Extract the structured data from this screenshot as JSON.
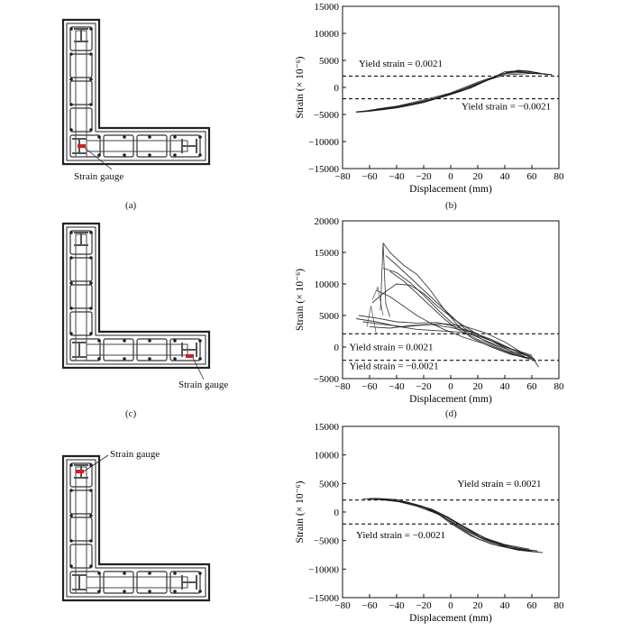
{
  "panels": [
    {
      "section_caption": "(a)",
      "gauge_label": "Strain gauge",
      "gauge_at": "corner",
      "chart_caption": "(b)"
    },
    {
      "section_caption": "(c)",
      "gauge_label": "Strain gauge",
      "gauge_at": "flange-end",
      "chart_caption": "(d)"
    },
    {
      "section_caption": "",
      "gauge_label": "Strain gauge",
      "gauge_at": "web-top",
      "chart_caption": ""
    }
  ],
  "chart_data": [
    {
      "type": "line",
      "xlabel": "Displacement (mm)",
      "ylabel": "Strain (× 10⁻⁶)",
      "xlim": [
        -80,
        80
      ],
      "ylim": [
        -15000,
        15000
      ],
      "xticks": [
        -80,
        -60,
        -40,
        -20,
        0,
        20,
        40,
        60,
        80
      ],
      "yticks": [
        -15000,
        -10000,
        -5000,
        0,
        5000,
        10000,
        15000
      ],
      "ytick_labels": [
        "−15000",
        "−10000",
        "−5000",
        "0",
        "5000",
        "10000",
        "15000"
      ],
      "xtick_labels": [
        "−80",
        "−60",
        "−40",
        "−20",
        "0",
        "20",
        "40",
        "60",
        "80"
      ],
      "reference_lines": [
        {
          "y": 2100,
          "label": "Yield strain = 0.0021",
          "label_x": -68,
          "label_y": 3800
        },
        {
          "y": -2100,
          "label": "Yield strain = −0.0021",
          "label_x": 8,
          "label_y": -4100
        }
      ],
      "series": [
        {
          "x": [
            -70,
            -60,
            -40,
            -20,
            0,
            20,
            40,
            60,
            75
          ],
          "y": [
            -4600,
            -4400,
            -3800,
            -2800,
            -1200,
            800,
            2300,
            2600,
            2400
          ]
        },
        {
          "x": [
            -70,
            -60,
            -40,
            -20,
            0,
            20,
            40,
            60,
            75
          ],
          "y": [
            -4500,
            -4300,
            -3500,
            -2300,
            -1000,
            1000,
            2600,
            2800,
            2300
          ]
        },
        {
          "x": [
            -65,
            -50,
            -30,
            -10,
            0,
            15,
            30,
            45,
            60,
            70
          ],
          "y": [
            -4400,
            -4100,
            -3300,
            -2000,
            -1200,
            200,
            1800,
            3000,
            2600,
            2500
          ]
        },
        {
          "x": [
            -60,
            -40,
            -20,
            0,
            20,
            35,
            50,
            65
          ],
          "y": [
            -4200,
            -3600,
            -2600,
            -1100,
            600,
            2200,
            3200,
            2700
          ]
        },
        {
          "x": [
            -55,
            -35,
            -15,
            0,
            15,
            30,
            40,
            55,
            70
          ],
          "y": [
            -4000,
            -3300,
            -2400,
            -1300,
            -100,
            1700,
            2900,
            3100,
            2400
          ]
        },
        {
          "x": [
            -68,
            -50,
            -30,
            -10,
            5,
            25,
            42,
            58,
            72
          ],
          "y": [
            -4500,
            -4000,
            -3100,
            -1900,
            -800,
            1200,
            2800,
            3000,
            2300
          ]
        },
        {
          "x": [
            -62,
            -45,
            -25,
            -5,
            10,
            28,
            38,
            52,
            67
          ],
          "y": [
            -4300,
            -3800,
            -2900,
            -1700,
            -500,
            1400,
            2500,
            3100,
            2600
          ]
        }
      ]
    },
    {
      "type": "line",
      "xlabel": "Displacement (mm)",
      "ylabel": "Strain (× 10⁻⁶)",
      "xlim": [
        -80,
        80
      ],
      "ylim": [
        -5000,
        20000
      ],
      "xticks": [
        -80,
        -60,
        -40,
        -20,
        0,
        20,
        40,
        60,
        80
      ],
      "yticks": [
        -5000,
        0,
        5000,
        10000,
        15000,
        20000
      ],
      "ytick_labels": [
        "−5000",
        "0",
        "5000",
        "10000",
        "15000",
        "20000"
      ],
      "xtick_labels": [
        "−80",
        "−60",
        "−40",
        "−20",
        "0",
        "20",
        "40",
        "60",
        "80"
      ],
      "reference_lines": [
        {
          "y": 2100,
          "label": "Yield strain = 0.0021",
          "label_x": -75,
          "label_y": -500
        },
        {
          "y": -2100,
          "label": "Yield strain = −0.0021",
          "label_x": -75,
          "label_y": -3500
        }
      ],
      "series": [
        {
          "x": [
            -50,
            -45,
            -35,
            -25,
            -15,
            -5,
            5,
            15,
            30,
            45,
            60
          ],
          "y": [
            16500,
            15000,
            13000,
            11500,
            9000,
            6000,
            3500,
            1500,
            0,
            -1200,
            -1800
          ]
        },
        {
          "x": [
            -48,
            -40,
            -30,
            -20,
            -10,
            0,
            10,
            25,
            40,
            55,
            60
          ],
          "y": [
            14500,
            13000,
            11000,
            9000,
            7000,
            5000,
            3000,
            1000,
            -500,
            -1600,
            -2000
          ]
        },
        {
          "x": [
            -45,
            -35,
            -25,
            -15,
            -5,
            5,
            20,
            35,
            50,
            58
          ],
          "y": [
            12000,
            10500,
            8500,
            6500,
            4500,
            2800,
            1200,
            -200,
            -1400,
            -1900
          ]
        },
        {
          "x": [
            -55,
            -45,
            -35,
            -25,
            -15,
            -5,
            10,
            25,
            40,
            55
          ],
          "y": [
            9000,
            8000,
            6500,
            5000,
            3800,
            2800,
            1500,
            500,
            -800,
            -1700
          ]
        },
        {
          "x": [
            -70,
            -55,
            -40,
            -25,
            -10,
            5,
            20,
            35,
            50,
            62
          ],
          "y": [
            4500,
            4000,
            3300,
            2800,
            2600,
            2400,
            1800,
            600,
            -800,
            -1900
          ]
        },
        {
          "x": [
            -65,
            -50,
            -35,
            -20,
            -5,
            10,
            25,
            40,
            55,
            63
          ],
          "y": [
            4000,
            3600,
            3200,
            3500,
            3700,
            3300,
            2300,
            800,
            -1200,
            -2200
          ]
        },
        {
          "x": [
            -68,
            -55,
            -40,
            -25,
            -10,
            0,
            15,
            30,
            45,
            60
          ],
          "y": [
            5000,
            4600,
            4000,
            3800,
            3900,
            3400,
            2500,
            1000,
            -700,
            -1500
          ]
        },
        {
          "x": [
            -60,
            -45,
            -30,
            -15,
            0,
            15,
            30,
            45,
            60
          ],
          "y": [
            3200,
            3000,
            3400,
            3600,
            3100,
            2400,
            1200,
            -300,
            -1300
          ]
        },
        {
          "x": [
            -58,
            -50,
            -40,
            -30,
            -20,
            -10,
            5,
            20,
            40,
            60,
            65
          ],
          "y": [
            7000,
            8500,
            10000,
            9800,
            8500,
            6500,
            4000,
            2000,
            0,
            -1500,
            -3200
          ]
        },
        {
          "x": [
            -50,
            -40,
            -30,
            -20,
            -10,
            0,
            15,
            35,
            55
          ],
          "y": [
            12500,
            11800,
            10200,
            8200,
            6000,
            4000,
            2000,
            200,
            -1500
          ]
        }
      ],
      "spike": {
        "x": [
          -52,
          -50,
          -48,
          -45
        ],
        "y": [
          5800,
          16500,
          6800,
          4800
        ]
      },
      "drop_lines": [
        {
          "x": [
            -58,
            -54,
            -50
          ],
          "y": [
            7500,
            9500,
            5000
          ]
        },
        {
          "x": [
            -62,
            -59,
            -55
          ],
          "y": [
            3200,
            6500,
            2000
          ]
        }
      ]
    },
    {
      "type": "line",
      "xlabel": "Displacement (mm)",
      "ylabel": "Strain (× 10⁻⁶)",
      "xlim": [
        -80,
        80
      ],
      "ylim": [
        -15000,
        15000
      ],
      "xticks": [
        -80,
        -60,
        -40,
        -20,
        0,
        20,
        40,
        60,
        80
      ],
      "yticks": [
        -15000,
        -10000,
        -5000,
        0,
        5000,
        10000,
        15000
      ],
      "ytick_labels": [
        "−15000",
        "−10000",
        "−5000",
        "0",
        "5000",
        "10000",
        "15000"
      ],
      "xtick_labels": [
        "−80",
        "−60",
        "−40",
        "−20",
        "0",
        "20",
        "40",
        "60",
        "80"
      ],
      "reference_lines": [
        {
          "y": 2100,
          "label": "Yield strain = 0.0021",
          "label_x": 5,
          "label_y": 4400
        },
        {
          "y": -2100,
          "label": "Yield strain = −0.0021",
          "label_x": -70,
          "label_y": -4600
        }
      ],
      "series": [
        {
          "x": [
            -65,
            -55,
            -40,
            -25,
            -10,
            0,
            15,
            30,
            50,
            65
          ],
          "y": [
            2300,
            2400,
            2200,
            1300,
            -200,
            -2000,
            -4200,
            -5600,
            -6700,
            -7000
          ]
        },
        {
          "x": [
            -62,
            -50,
            -35,
            -20,
            -5,
            5,
            20,
            35,
            55,
            68
          ],
          "y": [
            2200,
            2300,
            1800,
            800,
            -900,
            -2600,
            -4700,
            -5900,
            -6800,
            -7100
          ]
        },
        {
          "x": [
            -58,
            -45,
            -30,
            -15,
            0,
            12,
            25,
            42,
            60
          ],
          "y": [
            2200,
            2100,
            1500,
            400,
            -1700,
            -3400,
            -4900,
            -6200,
            -6900
          ]
        },
        {
          "x": [
            -55,
            -40,
            -25,
            -10,
            0,
            10,
            25,
            45,
            62
          ],
          "y": [
            2300,
            1900,
            1000,
            -300,
            -1600,
            -3000,
            -4800,
            -6400,
            -7000
          ]
        },
        {
          "x": [
            -50,
            -38,
            -25,
            -12,
            0,
            15,
            30,
            48,
            64
          ],
          "y": [
            2100,
            1800,
            1200,
            200,
            -1200,
            -3200,
            -5200,
            -6300,
            -6800
          ]
        },
        {
          "x": [
            -60,
            -48,
            -32,
            -18,
            -4,
            8,
            22,
            38,
            55
          ],
          "y": [
            2400,
            2200,
            1700,
            700,
            -800,
            -2500,
            -4400,
            -5800,
            -6600
          ]
        },
        {
          "x": [
            -52,
            -42,
            -28,
            -14,
            -2,
            10,
            28,
            45,
            60
          ],
          "y": [
            2200,
            2000,
            1400,
            500,
            -900,
            -2700,
            -4900,
            -6100,
            -6800
          ]
        },
        {
          "x": [
            -45,
            -35,
            -22,
            -10,
            0,
            12,
            26,
            40,
            58
          ],
          "y": [
            2000,
            1700,
            1100,
            0,
            -1300,
            -3000,
            -4600,
            -5700,
            -6500
          ]
        }
      ]
    }
  ]
}
